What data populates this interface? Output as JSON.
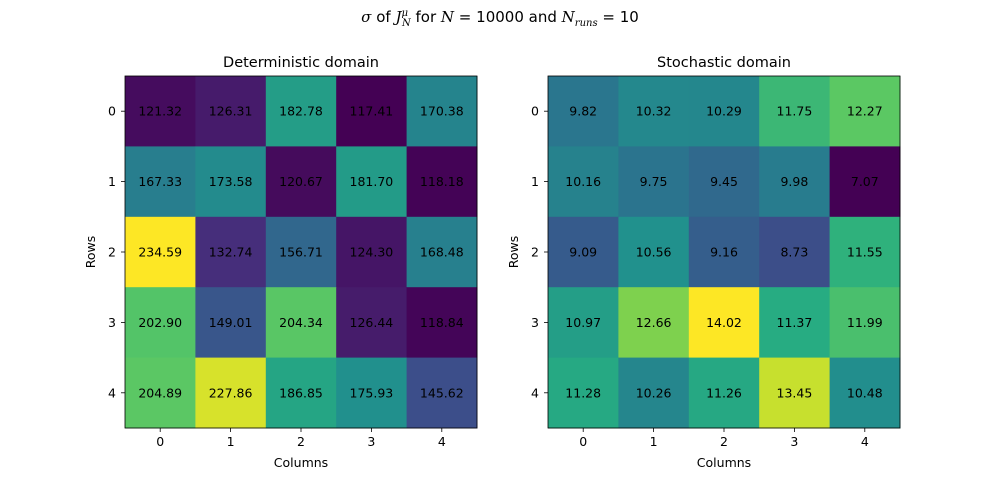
{
  "figure": {
    "suptitle": {
      "prefix": "σ",
      "of": "of",
      "J": "J",
      "J_sup": "μ",
      "J_sub": "N",
      "for": "for",
      "N": "N",
      "eq1": "=",
      "N_value": "10000",
      "and": "and",
      "N2": "N",
      "N2_sub": "runs",
      "eq2": "=",
      "runs_value": "10"
    }
  },
  "chart_data": [
    {
      "type": "heatmap",
      "title": "Deterministic domain",
      "xlabel": "Columns",
      "ylabel": "Rows",
      "x_ticks": [
        "0",
        "1",
        "2",
        "3",
        "4"
      ],
      "y_ticks": [
        "0",
        "1",
        "2",
        "3",
        "4"
      ],
      "colormap": "viridis",
      "values": [
        [
          121.32,
          126.31,
          182.78,
          117.41,
          170.38
        ],
        [
          167.33,
          173.58,
          120.67,
          181.7,
          118.18
        ],
        [
          234.59,
          132.74,
          156.71,
          124.3,
          168.48
        ],
        [
          202.9,
          149.01,
          204.34,
          126.44,
          118.84
        ],
        [
          204.89,
          227.86,
          186.85,
          175.93,
          145.62
        ]
      ],
      "labels": [
        [
          "121.32",
          "126.31",
          "182.78",
          "117.41",
          "170.38"
        ],
        [
          "167.33",
          "173.58",
          "120.67",
          "181.70",
          "118.18"
        ],
        [
          "234.59",
          "132.74",
          "156.71",
          "124.30",
          "168.48"
        ],
        [
          "202.90",
          "149.01",
          "204.34",
          "126.44",
          "118.84"
        ],
        [
          "204.89",
          "227.86",
          "186.85",
          "175.93",
          "145.62"
        ]
      ]
    },
    {
      "type": "heatmap",
      "title": "Stochastic domain",
      "xlabel": "Columns",
      "ylabel": "Rows",
      "x_ticks": [
        "0",
        "1",
        "2",
        "3",
        "4"
      ],
      "y_ticks": [
        "0",
        "1",
        "2",
        "3",
        "4"
      ],
      "colormap": "viridis",
      "values": [
        [
          9.82,
          10.32,
          10.29,
          11.75,
          12.27
        ],
        [
          10.16,
          9.75,
          9.45,
          9.98,
          7.07
        ],
        [
          9.09,
          10.56,
          9.16,
          8.73,
          11.55
        ],
        [
          10.97,
          12.66,
          14.02,
          11.37,
          11.99
        ],
        [
          11.28,
          10.26,
          11.26,
          13.45,
          10.48
        ]
      ],
      "labels": [
        [
          "9.82",
          "10.32",
          "10.29",
          "11.75",
          "12.27"
        ],
        [
          "10.16",
          "9.75",
          "9.45",
          "9.98",
          "7.07"
        ],
        [
          "9.09",
          "10.56",
          "9.16",
          "8.73",
          "11.55"
        ],
        [
          "10.97",
          "12.66",
          "14.02",
          "11.37",
          "11.99"
        ],
        [
          "11.28",
          "10.26",
          "11.26",
          "13.45",
          "10.48"
        ]
      ]
    }
  ]
}
